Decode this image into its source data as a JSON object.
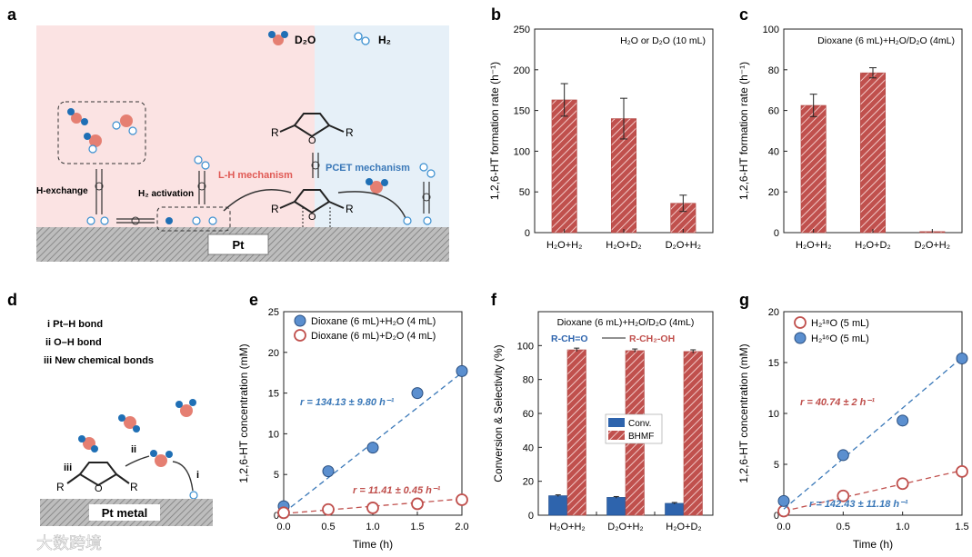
{
  "panel_labels": {
    "a": "a",
    "b": "b",
    "c": "c",
    "d": "d",
    "e": "e",
    "f": "f",
    "g": "g"
  },
  "watermark": "大数跨境",
  "schematic_a": {
    "legend_d2o": "D₂O",
    "legend_h2": "H₂",
    "h_exchange": "H-exchange",
    "h2_activation": "H₂ activation",
    "lh_mechanism": "L-H mechanism",
    "pcet_mechanism": "PCET mechanism",
    "surface_label": "Pt",
    "r_left": "R",
    "r_right": "R",
    "o_atom": "O",
    "colors": {
      "pink": "#fbe3e3",
      "blue": "#e6f0f8",
      "lh": "#e05a55",
      "pcet": "#3a78b8",
      "o_atom": "#e57f72",
      "d_atom": "#1f6fb5"
    }
  },
  "schematic_d": {
    "items": [
      "i  Pt–H bond",
      "ii  O–H bond",
      "iii  New chemical bonds"
    ],
    "surface_label": "Pt metal",
    "step_iii": "iii",
    "step_ii": "ii",
    "step_i": "i",
    "r_left": "R",
    "r_right": "R",
    "o_atom": "O"
  },
  "chart_data": [
    {
      "id": "b",
      "type": "bar",
      "categories": [
        "H₂O+H₂",
        "H₂O+D₂",
        "D₂O+H₂"
      ],
      "values": [
        163,
        140,
        36
      ],
      "errors": [
        20,
        25,
        10
      ],
      "ylabel": "1,2,6-HT formation rate (h⁻¹)",
      "ylim": [
        0,
        250
      ],
      "yticks": [
        "0",
        "50",
        "100",
        "150",
        "200",
        "250"
      ],
      "annotation": "H₂O or D₂O (10 mL)",
      "color": "#c0504d"
    },
    {
      "id": "c",
      "type": "bar",
      "categories": [
        "H₂O+H₂",
        "H₂O+D₂",
        "D₂O+H₂"
      ],
      "values": [
        62.5,
        78.5,
        0.5
      ],
      "errors": [
        5.5,
        2.5,
        0
      ],
      "ylabel": "1,2,6-HT formation rate (h⁻¹)",
      "ylim": [
        0,
        100
      ],
      "yticks": [
        "0",
        "20",
        "40",
        "60",
        "80",
        "100"
      ],
      "annotation": "Dioxane (6 mL)+H₂O/D₂O (4mL)",
      "color": "#c0504d"
    },
    {
      "id": "e",
      "type": "scatter",
      "xlabel": "Time (h)",
      "ylabel": "1,2,6-HT concentration (mM)",
      "xlim": [
        0,
        2.0
      ],
      "ylim": [
        0,
        25
      ],
      "xticks": [
        "0.0",
        "0.5",
        "1.0",
        "1.5",
        "2.0"
      ],
      "yticks": [
        "0",
        "5",
        "10",
        "15",
        "20",
        "25"
      ],
      "series": [
        {
          "name": "Dioxane (6 mL)+H₂O (4 mL)",
          "x": [
            0,
            0.5,
            1.0,
            1.5,
            2.0
          ],
          "y": [
            1.1,
            5.4,
            8.3,
            15.0,
            17.7
          ],
          "fit": [
            0.3,
            17.5
          ],
          "filled": true,
          "color": "#3a78b8",
          "rate": "r = 134.13 ± 9.80 h⁻¹"
        },
        {
          "name": "Dioxane (6 mL)+D₂O (4 mL)",
          "x": [
            0,
            0.5,
            1.0,
            1.5,
            2.0
          ],
          "y": [
            0.3,
            0.7,
            0.9,
            1.4,
            1.9
          ],
          "fit": [
            0.2,
            2.0
          ],
          "filled": false,
          "color": "#c0504d",
          "rate": "r = 11.41 ± 0.45 h⁻¹"
        }
      ]
    },
    {
      "id": "f",
      "type": "bar",
      "categories": [
        "H₂O+H₂",
        "D₂O+H₂",
        "H₂O+D₂"
      ],
      "series": [
        {
          "name": "Conv.",
          "values": [
            11.5,
            10.5,
            7.0
          ],
          "color": "#2e64ad",
          "hatched": false
        },
        {
          "name": "BHMF",
          "values": [
            97.5,
            97.0,
            96.5
          ],
          "color": "#c0504d",
          "hatched": true
        }
      ],
      "ylabel": "Conversion & Selectivity (%)",
      "ylim": [
        0,
        120
      ],
      "yticks": [
        "0",
        "20",
        "40",
        "60",
        "80",
        "100"
      ],
      "annotation": "Dioxane (6 mL)+H₂O/D₂O (4mL)",
      "reaction_left": "R-CH=O",
      "reaction_right": "R-CH₂-OH"
    },
    {
      "id": "g",
      "type": "scatter",
      "xlabel": "Time (h)",
      "ylabel": "1,2,6-HT concentration (mM)",
      "xlim": [
        0,
        1.5
      ],
      "ylim": [
        0,
        20
      ],
      "xticks": [
        "0.0",
        "0.5",
        "1.0",
        "1.5"
      ],
      "yticks": [
        "0",
        "5",
        "10",
        "15",
        "20"
      ],
      "series": [
        {
          "name": "H₂¹⁸O (5 mL)",
          "x": [
            0,
            0.5,
            1.0,
            1.5
          ],
          "y": [
            0.4,
            1.9,
            3.1,
            4.3
          ],
          "fit": [
            0.4,
            4.4
          ],
          "filled": false,
          "color": "#c0504d",
          "rate": "r = 40.74 ± 2 h⁻¹"
        },
        {
          "name": "H₂¹⁶O (5 mL)",
          "x": [
            0,
            0.5,
            1.0,
            1.5
          ],
          "y": [
            1.4,
            5.9,
            9.3,
            15.4
          ],
          "fit": [
            0.6,
            15.5
          ],
          "filled": true,
          "color": "#3a78b8",
          "rate": "r = 142.43 ± 11.18 h⁻¹"
        }
      ]
    }
  ]
}
